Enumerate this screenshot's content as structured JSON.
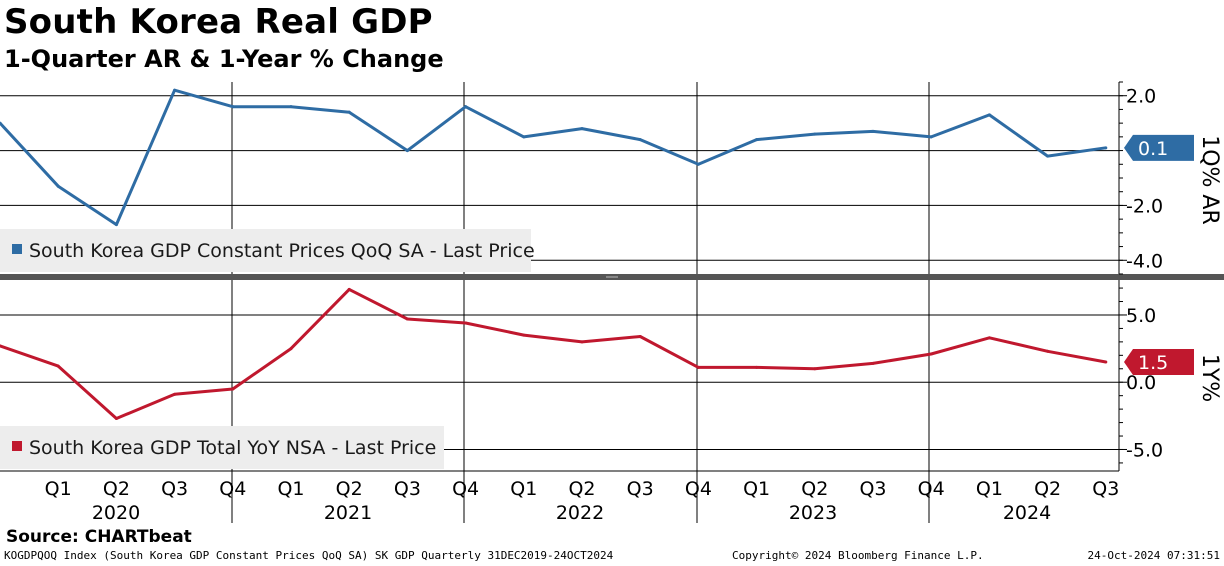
{
  "title": "South Korea Real GDP",
  "subtitle": "1-Quarter AR & 1-Year % Change",
  "source": "Source: CHARTbeat",
  "footer": {
    "left": "KOGDPQOQ Index (South Korea GDP Constant Prices QoQ SA) SK GDP  Quarterly 31DEC2019-24OCT2024",
    "middle": "Copyright© 2024 Bloomberg Finance L.P.",
    "right": "24-Oct-2024 07:31:51"
  },
  "colors": {
    "top": "#2e6ca4",
    "bottom": "#c0182e"
  },
  "chart_data": [
    {
      "type": "line",
      "panel": "top",
      "axis_title": "1Q% AR",
      "legend": "South Korea GDP Constant Prices QoQ SA - Last Price",
      "last_value_label": "0.1",
      "ylim": [
        -4.5,
        2.5
      ],
      "yticks": [
        2.0,
        -2.0,
        -4.0
      ],
      "ytick_labels": [
        "2.0",
        "-2.0",
        "-4.0"
      ],
      "gridlines": [
        2.0,
        0.0,
        -2.0,
        -4.0
      ],
      "x": [
        "2019 Q4",
        "2020 Q1",
        "2020 Q2",
        "2020 Q3",
        "2020 Q4",
        "2021 Q1",
        "2021 Q2",
        "2021 Q3",
        "2021 Q4",
        "2022 Q1",
        "2022 Q2",
        "2022 Q3",
        "2022 Q4",
        "2023 Q1",
        "2023 Q2",
        "2023 Q3",
        "2023 Q4",
        "2024 Q1",
        "2024 Q2",
        "2024 Q3"
      ],
      "values": [
        1.0,
        -1.3,
        -2.7,
        2.2,
        1.6,
        1.6,
        1.4,
        0.0,
        1.6,
        0.5,
        0.8,
        0.4,
        -0.5,
        0.4,
        0.6,
        0.7,
        0.5,
        1.3,
        -0.2,
        0.1
      ]
    },
    {
      "type": "line",
      "panel": "bottom",
      "axis_title": "1Y%",
      "legend": "South Korea GDP Total YoY NSA - Last Price",
      "last_value_label": "1.5",
      "ylim": [
        -6.6,
        7.6
      ],
      "yticks": [
        5.0,
        0.0,
        -5.0
      ],
      "ytick_labels": [
        "5.0",
        "0.0",
        "-5.0"
      ],
      "gridlines": [
        5.0,
        0.0,
        -5.0
      ],
      "x": [
        "2019 Q4",
        "2020 Q1",
        "2020 Q2",
        "2020 Q3",
        "2020 Q4",
        "2021 Q1",
        "2021 Q2",
        "2021 Q3",
        "2021 Q4",
        "2022 Q1",
        "2022 Q2",
        "2022 Q3",
        "2022 Q4",
        "2023 Q1",
        "2023 Q2",
        "2023 Q3",
        "2023 Q4",
        "2024 Q1",
        "2024 Q2",
        "2024 Q3"
      ],
      "values": [
        2.7,
        1.2,
        -2.7,
        -0.9,
        -0.5,
        2.5,
        6.9,
        4.7,
        4.4,
        3.5,
        3.0,
        3.4,
        1.1,
        1.1,
        1.0,
        1.4,
        2.1,
        3.3,
        2.3,
        1.5
      ]
    }
  ],
  "x_axis": {
    "quarter_labels": [
      "Q1",
      "Q2",
      "Q3",
      "Q4",
      "Q1",
      "Q2",
      "Q3",
      "Q4",
      "Q1",
      "Q2",
      "Q3",
      "Q4",
      "Q1",
      "Q2",
      "Q3",
      "Q4",
      "Q1",
      "Q2",
      "Q3"
    ],
    "years": [
      "2020",
      "2021",
      "2022",
      "2023",
      "2024"
    ]
  }
}
